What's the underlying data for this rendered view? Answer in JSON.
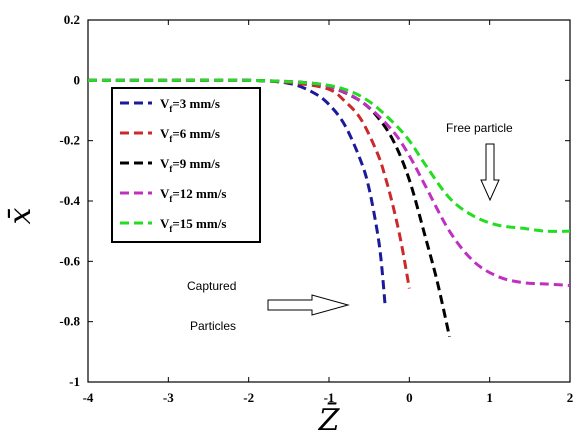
{
  "chart_data": {
    "type": "line",
    "xlabel": "Z̄",
    "ylabel": "x̄",
    "xlim": [
      -4,
      2
    ],
    "ylim": [
      -1,
      0.2
    ],
    "x_ticks": [
      -4,
      -3,
      -2,
      -1,
      0,
      1,
      2
    ],
    "y_ticks": [
      0.2,
      0,
      -0.2,
      -0.4,
      -0.6,
      -0.8,
      -1
    ],
    "x_tick_labels": [
      "-4",
      "-3",
      "-2",
      "-1",
      "0",
      "1",
      "2"
    ],
    "y_tick_labels": [
      "0.2",
      "0",
      "-0.2",
      "-0.4",
      "-0.6",
      "-0.8",
      "-1"
    ],
    "grid": false,
    "legend_position": "left-center",
    "series": [
      {
        "name": "Vf=3 mm/s",
        "label_main": "V",
        "label_sub": "f",
        "label_rest": "=3  mm/s",
        "color": "#1a1a9a",
        "x": [
          -4.0,
          -3.0,
          -2.0,
          -1.5,
          -1.2,
          -1.0,
          -0.8,
          -0.6,
          -0.5,
          -0.4,
          -0.35,
          -0.3
        ],
        "y": [
          0.0,
          0.0,
          0.0,
          -0.01,
          -0.04,
          -0.08,
          -0.15,
          -0.27,
          -0.36,
          -0.5,
          -0.6,
          -0.75
        ]
      },
      {
        "name": "Vf=6 mm/s",
        "label_main": "V",
        "label_sub": "f",
        "label_rest": "=6  mm/s",
        "color": "#cc2a2a",
        "x": [
          -4.0,
          -3.0,
          -2.0,
          -1.4,
          -1.0,
          -0.8,
          -0.6,
          -0.4,
          -0.3,
          -0.2,
          -0.1,
          0.0
        ],
        "y": [
          0.0,
          0.0,
          0.0,
          -0.01,
          -0.03,
          -0.07,
          -0.13,
          -0.24,
          -0.32,
          -0.42,
          -0.54,
          -0.69
        ]
      },
      {
        "name": "Vf=9 mm/s",
        "label_main": "V",
        "label_sub": "f",
        "label_rest": "=9  mm/s",
        "color": "#000000",
        "x": [
          -4.0,
          -3.0,
          -2.0,
          -1.2,
          -0.9,
          -0.6,
          -0.4,
          -0.2,
          0.0,
          0.2,
          0.35,
          0.5
        ],
        "y": [
          0.0,
          0.0,
          0.0,
          -0.01,
          -0.03,
          -0.07,
          -0.12,
          -0.2,
          -0.33,
          -0.52,
          -0.67,
          -0.85
        ]
      },
      {
        "name": "Vf=12 mm/s",
        "label_main": "V",
        "label_sub": "f",
        "label_rest": "=12  mm/s",
        "color": "#c030c0",
        "x": [
          -4.0,
          -3.0,
          -2.0,
          -1.2,
          -0.8,
          -0.5,
          -0.2,
          0.0,
          0.2,
          0.5,
          0.8,
          1.1,
          1.4,
          1.7,
          2.0
        ],
        "y": [
          0.0,
          0.0,
          0.0,
          -0.01,
          -0.04,
          -0.09,
          -0.17,
          -0.25,
          -0.35,
          -0.5,
          -0.6,
          -0.65,
          -0.67,
          -0.675,
          -0.68
        ]
      },
      {
        "name": "Vf=15 mm/s",
        "label_main": "V",
        "label_sub": "f",
        "label_rest": "=15  mm/s",
        "color": "#22dd22",
        "x": [
          -4.0,
          -3.0,
          -2.0,
          -1.2,
          -0.8,
          -0.5,
          -0.2,
          0.0,
          0.2,
          0.5,
          0.8,
          1.1,
          1.4,
          1.7,
          2.0
        ],
        "y": [
          0.0,
          0.0,
          0.0,
          -0.01,
          -0.03,
          -0.07,
          -0.14,
          -0.2,
          -0.28,
          -0.39,
          -0.45,
          -0.48,
          -0.49,
          -0.5,
          -0.5
        ]
      }
    ],
    "annotations": {
      "free_particle": "Free particle",
      "captured_line1": "Captured",
      "captured_line2": "Particles"
    }
  }
}
